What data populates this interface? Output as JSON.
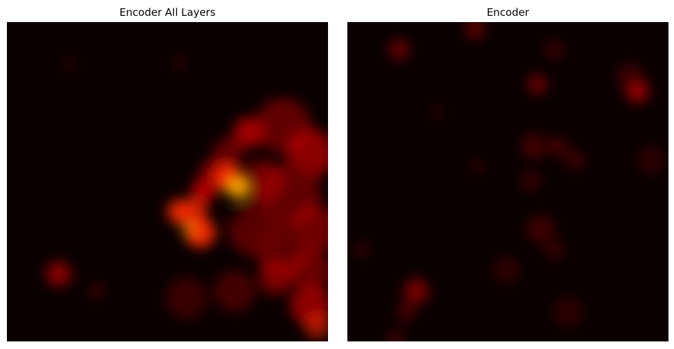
{
  "panels": [
    {
      "title": "Encoder All Layers"
    },
    {
      "title": "Encoder"
    }
  ],
  "colormap": {
    "name": "hot",
    "low": "#0a0000",
    "mid": "#ff2a00",
    "high": "#ffb000"
  }
}
